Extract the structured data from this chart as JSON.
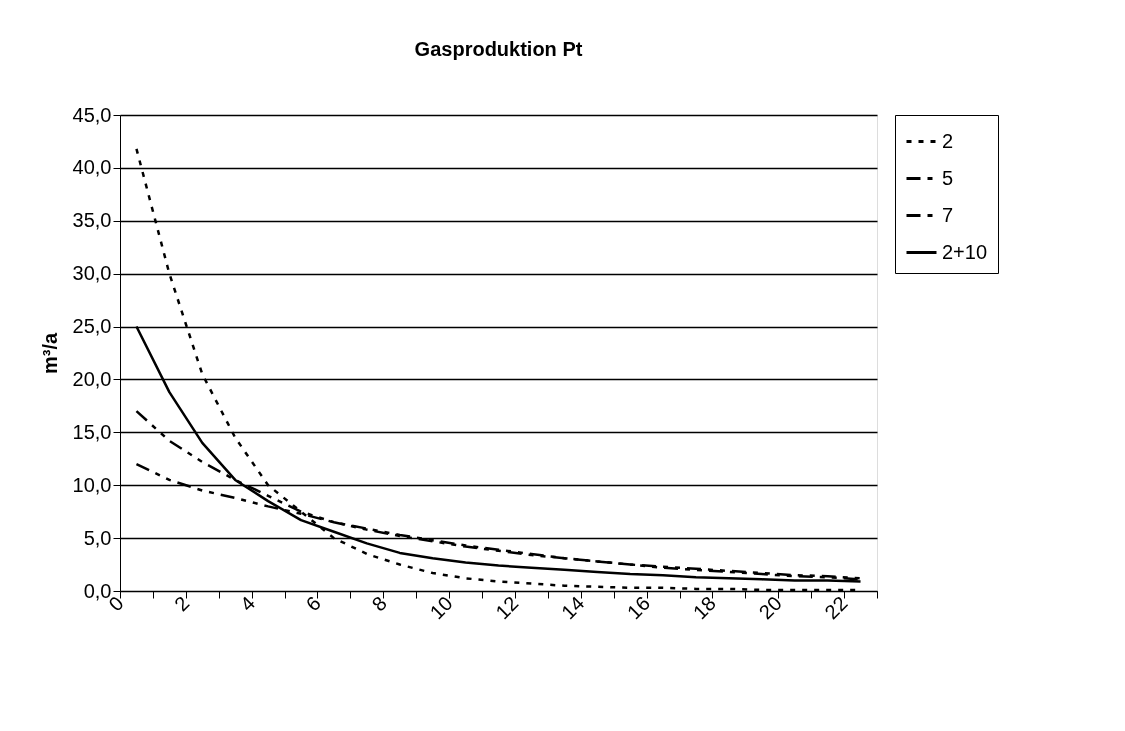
{
  "chart_data": {
    "type": "line",
    "title": "Gasproduktion Pt",
    "ylabel": "m³/a",
    "x": [
      0.5,
      1.5,
      2.5,
      3.5,
      4.5,
      5.5,
      6.5,
      7.5,
      8.5,
      9.5,
      10.5,
      11.5,
      12.5,
      13.5,
      14.5,
      15.5,
      16.5,
      17.5,
      18.5,
      19.5,
      20.5,
      21.5,
      22.5
    ],
    "series": [
      {
        "name": "2",
        "color": "#000000",
        "line_style": "dotted",
        "values": [
          41.8,
          30,
          20.5,
          14.5,
          10,
          7.5,
          5,
          3.5,
          2.5,
          1.7,
          1.2,
          0.9,
          0.7,
          0.5,
          0.4,
          0.3,
          0.3,
          0.2,
          0.2,
          0.1,
          0.1,
          0.1,
          0.1
        ]
      },
      {
        "name": "5",
        "color": "#000000",
        "line_style": "dashed",
        "values": [
          17,
          14.2,
          12.2,
          10.5,
          9,
          7.5,
          6.5,
          5.8,
          5.2,
          4.7,
          4.2,
          3.8,
          3.4,
          3.1,
          2.8,
          2.5,
          2.3,
          2.1,
          1.9,
          1.7,
          1.5,
          1.4,
          1.2
        ]
      },
      {
        "name": "7",
        "color": "#000000",
        "line_style": "dashed",
        "values": [
          12,
          10.5,
          9.5,
          8.8,
          8,
          7.3,
          6.5,
          5.9,
          5.3,
          4.8,
          4.3,
          3.9,
          3.5,
          3.1,
          2.8,
          2.5,
          2.2,
          2.0,
          1.8,
          1.6,
          1.4,
          1.3,
          1.1
        ]
      },
      {
        "name": "2+10",
        "color": "#000000",
        "line_style": "solid",
        "values": [
          25,
          18.8,
          14,
          10.5,
          8.5,
          6.7,
          5.6,
          4.5,
          3.6,
          3.1,
          2.7,
          2.4,
          2.2,
          2.0,
          1.8,
          1.6,
          1.5,
          1.3,
          1.2,
          1.1,
          1.0,
          1.0,
          0.9
        ]
      }
    ],
    "xlim": [
      0,
      23
    ],
    "xticks": [
      0,
      {
        "value": 1,
        "label": null
      },
      2,
      {
        "value": 3,
        "label": null
      },
      4,
      {
        "value": 5,
        "label": null
      },
      6,
      {
        "value": 7,
        "label": null
      },
      8,
      {
        "value": 9,
        "label": null
      },
      10,
      {
        "value": 11,
        "label": null
      },
      12,
      {
        "value": 13,
        "label": null
      },
      14,
      {
        "value": 15,
        "label": null
      },
      16,
      {
        "value": 17,
        "label": null
      },
      18,
      {
        "value": 19,
        "label": null
      },
      20,
      {
        "value": 21,
        "label": null
      },
      22,
      {
        "value": 23,
        "label": null
      }
    ],
    "ylim": [
      0,
      45
    ],
    "yticks": [
      {
        "value": 0,
        "label": "0,0"
      },
      {
        "value": 5,
        "label": "5,0"
      },
      {
        "value": 10,
        "label": "10,0"
      },
      {
        "value": 15,
        "label": "15,0"
      },
      {
        "value": 20,
        "label": "20,0"
      },
      {
        "value": 25,
        "label": "25,0"
      },
      {
        "value": 30,
        "label": "30,0"
      },
      {
        "value": 35,
        "label": "35,0"
      },
      {
        "value": 40,
        "label": "40,0"
      },
      {
        "value": 45,
        "label": "45,0"
      }
    ],
    "grid": "y",
    "legend": "right",
    "marker": "none"
  }
}
